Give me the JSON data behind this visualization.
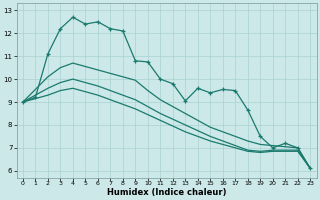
{
  "xlabel": "Humidex (Indice chaleur)",
  "ylabel": "",
  "bg_color": "#cce8e8",
  "grid_color": "#aad0d0",
  "line_color": "#1a7a6e",
  "xlim": [
    -0.5,
    23.5
  ],
  "ylim": [
    5.7,
    13.3
  ],
  "xticks": [
    0,
    1,
    2,
    3,
    4,
    5,
    6,
    7,
    8,
    9,
    10,
    11,
    12,
    13,
    14,
    15,
    16,
    17,
    18,
    19,
    20,
    21,
    22,
    23
  ],
  "yticks": [
    6,
    7,
    8,
    9,
    10,
    11,
    12,
    13
  ],
  "series": {
    "jagged": [
      9.0,
      9.2,
      11.1,
      12.2,
      12.7,
      12.4,
      12.5,
      12.2,
      12.1,
      10.8,
      10.75,
      10.0,
      9.8,
      9.05,
      9.6,
      9.4,
      9.55,
      9.5,
      8.65,
      7.5,
      7.0,
      7.2,
      7.0,
      6.1
    ],
    "line1": [
      9.0,
      9.55,
      10.1,
      10.5,
      10.7,
      10.55,
      10.4,
      10.25,
      10.1,
      9.95,
      9.5,
      9.1,
      8.8,
      8.5,
      8.2,
      7.9,
      7.7,
      7.5,
      7.3,
      7.15,
      7.1,
      7.05,
      7.0,
      6.1
    ],
    "line2": [
      9.0,
      9.3,
      9.6,
      9.85,
      10.0,
      9.85,
      9.7,
      9.5,
      9.3,
      9.1,
      8.8,
      8.5,
      8.25,
      8.0,
      7.75,
      7.5,
      7.3,
      7.1,
      6.9,
      6.85,
      6.9,
      6.9,
      6.9,
      6.1
    ],
    "line3": [
      9.0,
      9.15,
      9.3,
      9.5,
      9.6,
      9.45,
      9.3,
      9.1,
      8.9,
      8.7,
      8.45,
      8.2,
      7.95,
      7.7,
      7.5,
      7.3,
      7.15,
      7.0,
      6.85,
      6.8,
      6.85,
      6.85,
      6.85,
      6.1
    ]
  }
}
